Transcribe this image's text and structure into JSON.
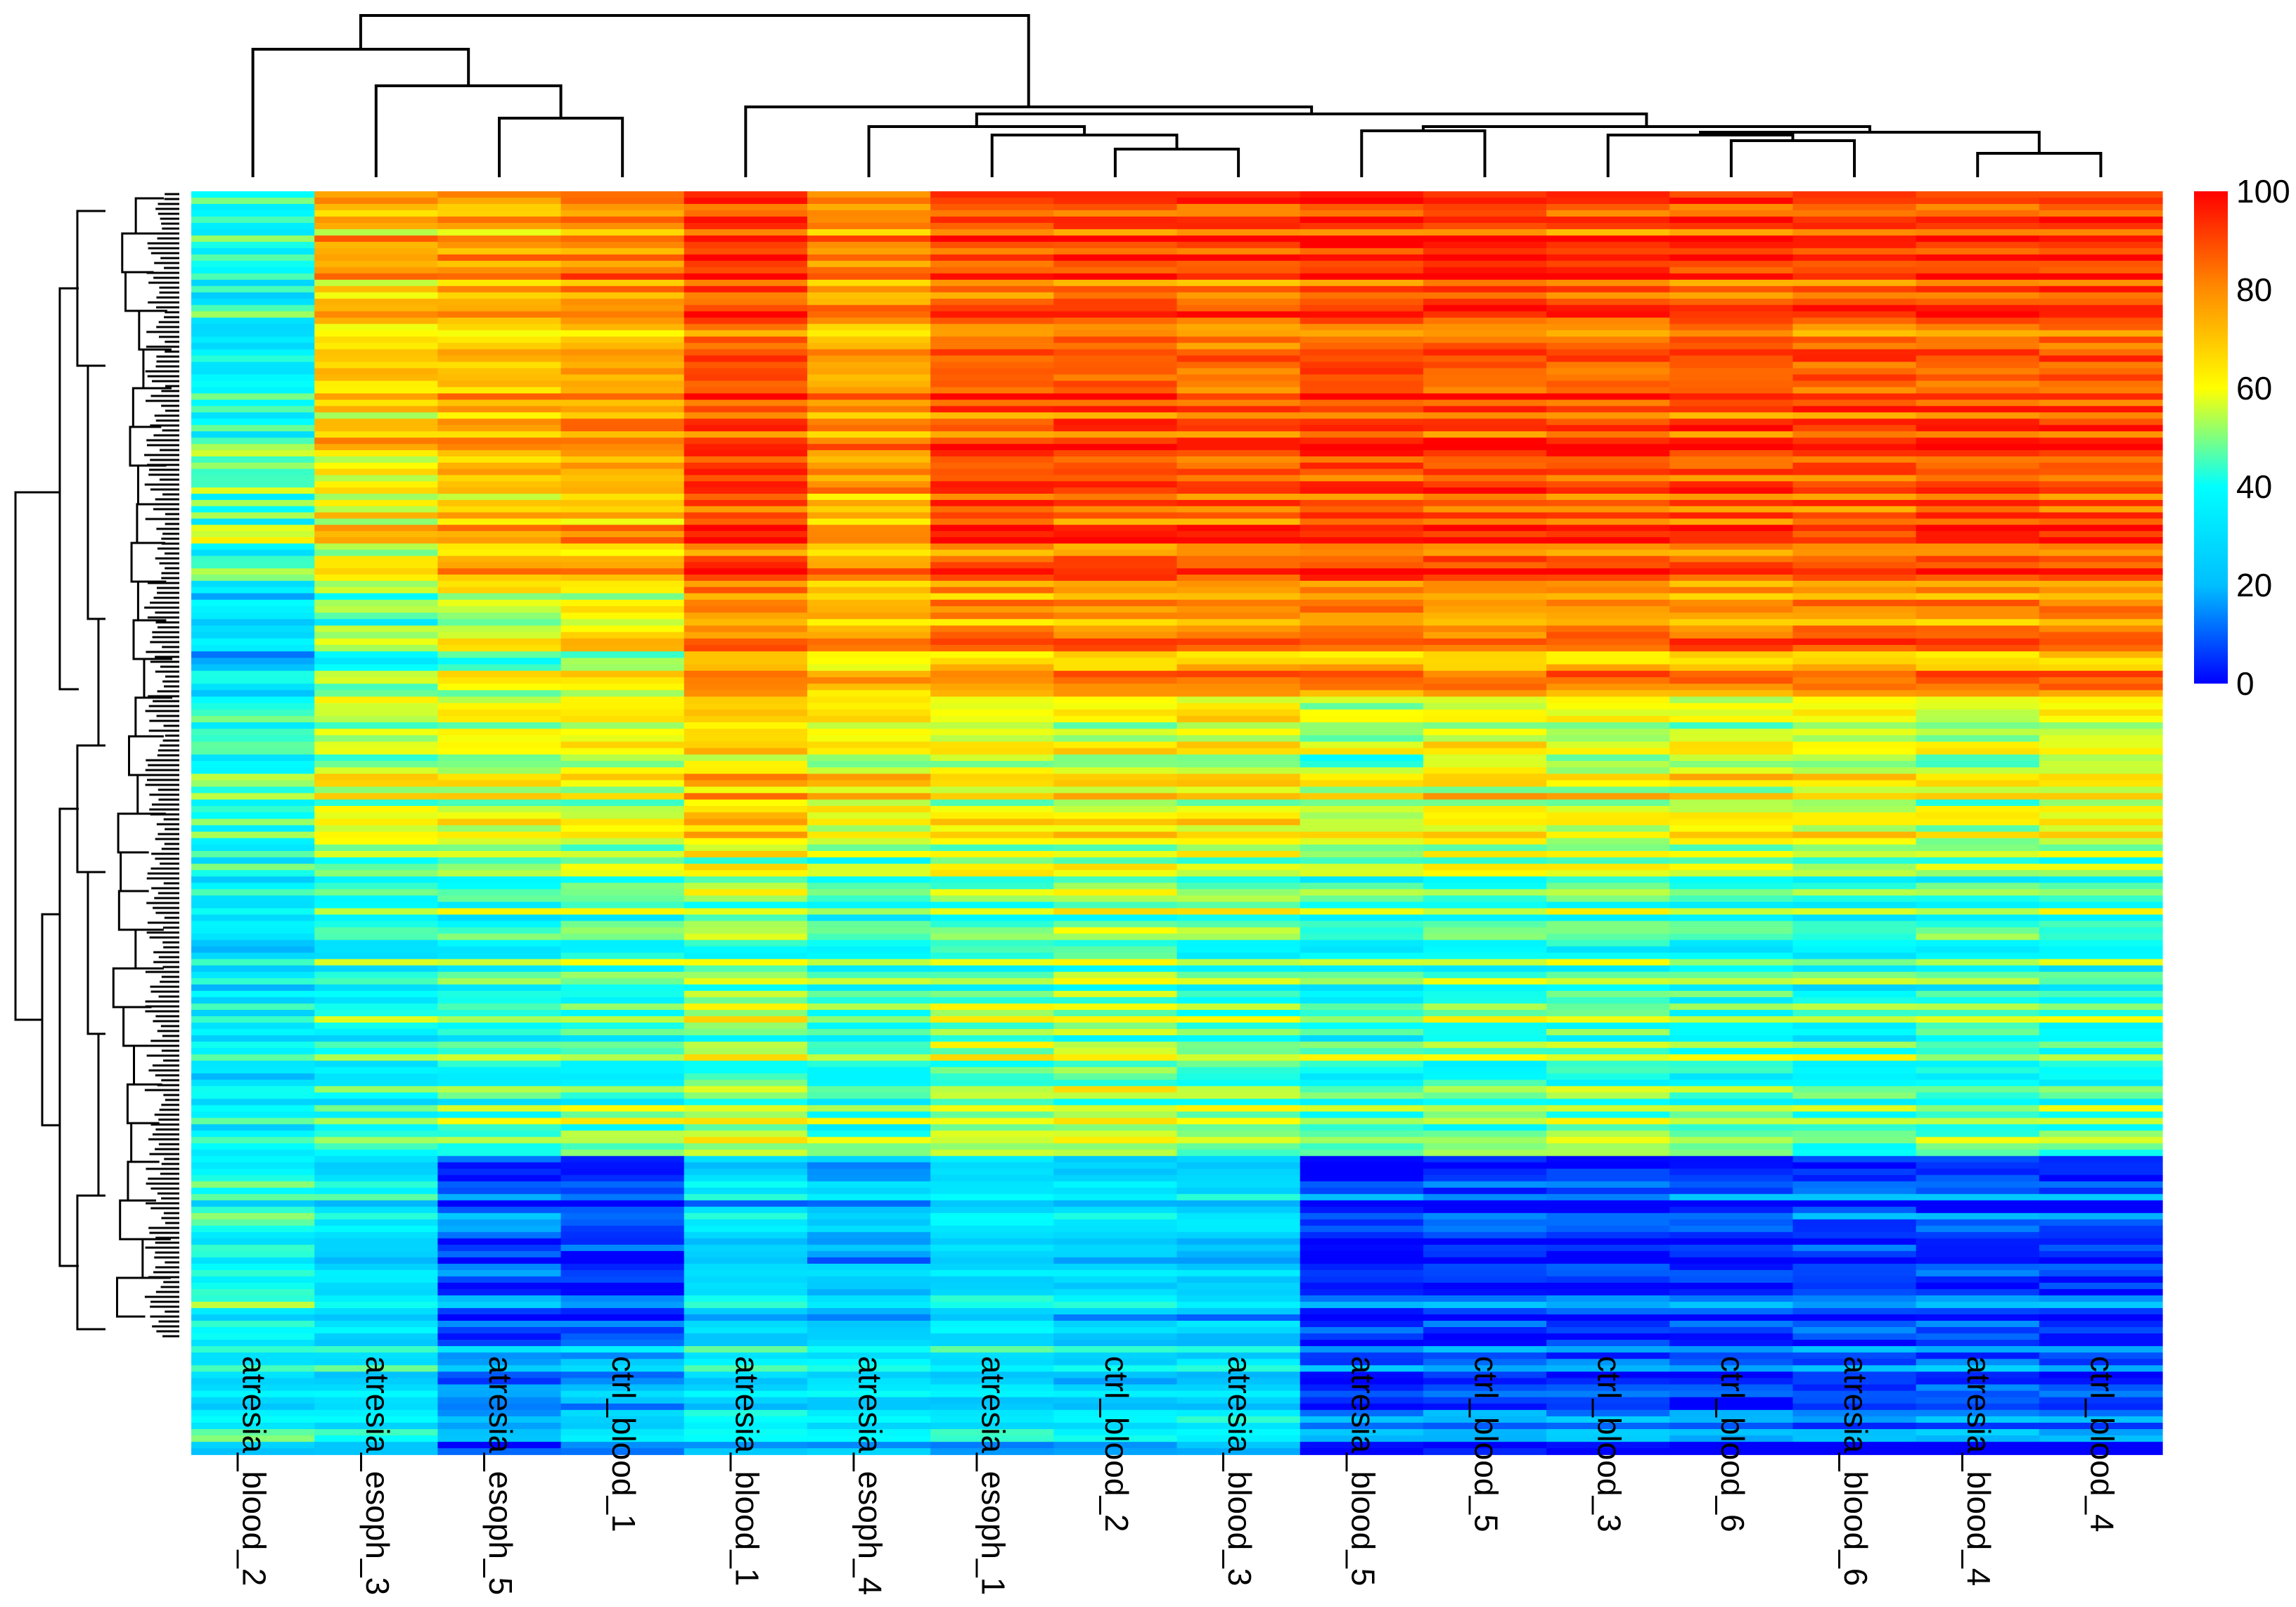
{
  "chart_data": {
    "type": "heatmap",
    "title": "",
    "xlabel": "",
    "ylabel": "",
    "columns": [
      "atresia_blood_2",
      "atresia_esoph_3",
      "atresia_esoph_5",
      "ctrl_blood_1",
      "atresia_blood_1",
      "atresia_esoph_4",
      "atresia_esoph_1",
      "ctrl_blood_2",
      "atresia_blood_3",
      "atresia_blood_5",
      "ctrl_blood_5",
      "ctrl_blood_3",
      "ctrl_blood_6",
      "atresia_blood_6",
      "atresia_blood_4",
      "ctrl_blood_4"
    ],
    "column_dendrogram": true,
    "row_dendrogram": true,
    "row_labels_shown": false,
    "row_blocks": [
      {
        "rows": 0.22,
        "values": [
          38,
          70,
          72,
          78,
          88,
          78,
          86,
          88,
          86,
          90,
          90,
          88,
          88,
          88,
          88,
          88
        ]
      },
      {
        "rows": 0.13,
        "values": [
          45,
          62,
          70,
          72,
          90,
          74,
          88,
          86,
          86,
          88,
          88,
          88,
          86,
          86,
          88,
          88
        ]
      },
      {
        "rows": 0.09,
        "values": [
          30,
          48,
          56,
          60,
          78,
          70,
          78,
          78,
          80,
          80,
          78,
          80,
          80,
          80,
          80,
          80
        ]
      },
      {
        "rows": 0.14,
        "values": [
          45,
          58,
          60,
          60,
          68,
          62,
          62,
          62,
          64,
          56,
          62,
          60,
          60,
          60,
          58,
          60
        ]
      },
      {
        "rows": 0.26,
        "values": [
          35,
          42,
          45,
          48,
          52,
          45,
          52,
          55,
          50,
          45,
          48,
          48,
          46,
          45,
          46,
          46
        ]
      },
      {
        "rows": 0.16,
        "values": [
          40,
          30,
          8,
          6,
          28,
          22,
          30,
          28,
          26,
          4,
          5,
          6,
          6,
          6,
          6,
          6
        ]
      },
      {
        "rows": 0.1,
        "values": [
          35,
          32,
          15,
          22,
          32,
          32,
          30,
          28,
          30,
          8,
          10,
          10,
          8,
          8,
          10,
          8
        ]
      }
    ],
    "colorbar": {
      "min": 0,
      "max": 100,
      "ticks": [
        0,
        20,
        40,
        60,
        80,
        100
      ],
      "colors": [
        "#0000ff",
        "#00bfff",
        "#00ffff",
        "#ffff00",
        "#ff8c00",
        "#ff0000"
      ],
      "position": "right"
    }
  }
}
